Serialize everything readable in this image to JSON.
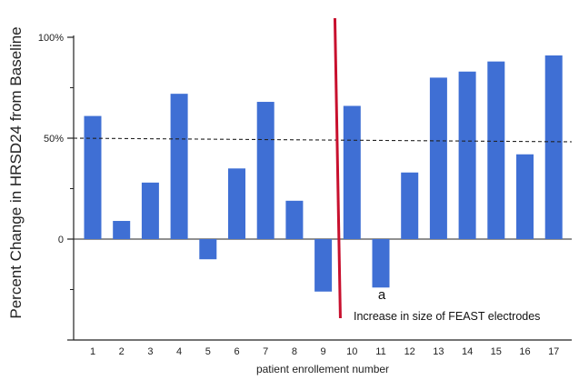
{
  "chart_data": {
    "type": "bar",
    "title": "",
    "ylabel": "Percent Change in HRSD24 from Baseline",
    "xlabel": "patient enrollement number",
    "categories": [
      "1",
      "2",
      "3",
      "4",
      "5",
      "6",
      "7",
      "8",
      "9",
      "10",
      "11",
      "12",
      "13",
      "14",
      "15",
      "16",
      "17"
    ],
    "values": [
      61,
      9,
      28,
      72,
      -10,
      35,
      68,
      19,
      -26,
      66,
      -24,
      33,
      80,
      83,
      88,
      42,
      91
    ],
    "ylim": [
      -50,
      100
    ],
    "yticks": [
      {
        "value": 100,
        "label": "100%"
      },
      {
        "value": 50,
        "label": "50%"
      },
      {
        "value": 0,
        "label": "0"
      }
    ],
    "minor_yticks": [
      -25,
      25,
      75
    ],
    "reference_line": {
      "value": 50,
      "style": "dashed"
    },
    "divider": {
      "after_category": "9",
      "color": "#c8102e"
    },
    "annotations": {
      "marker": "a",
      "marker_category": "11",
      "divider_note": "Increase in size of FEAST electrodes"
    },
    "colors": {
      "bar": "#3f6fd4",
      "divider": "#c8102e",
      "axis": "#222222"
    },
    "grid": false,
    "legend": "none"
  }
}
